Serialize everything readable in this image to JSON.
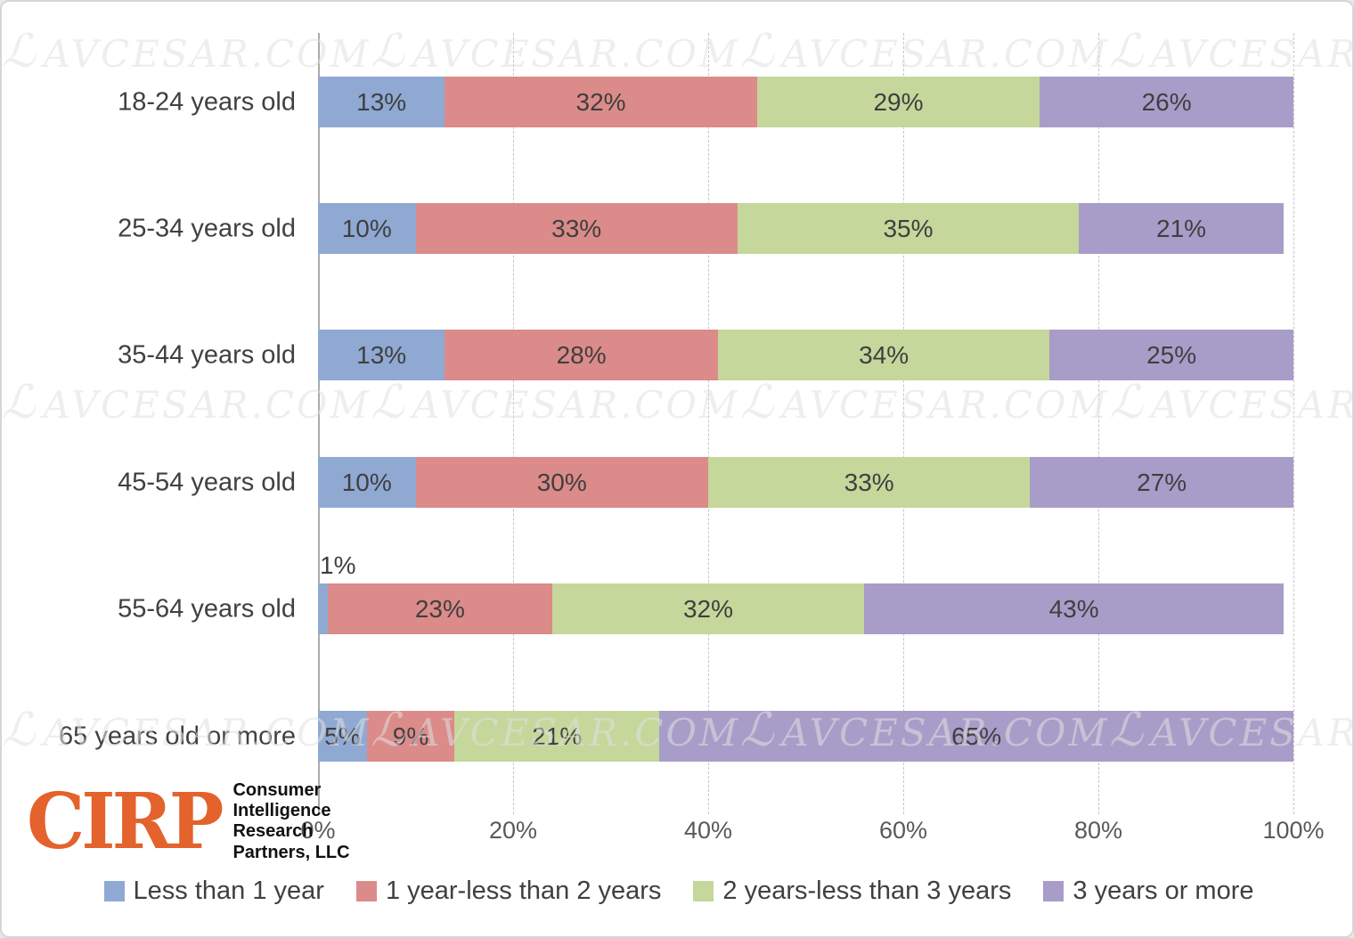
{
  "watermark": {
    "text": "AVCESAR.COM",
    "prefix": "ℒ"
  },
  "logo": {
    "acronym": "CIRP",
    "acronym_color": "#E4622B",
    "lines": [
      "Consumer",
      "Intelligence",
      "Research",
      "Partners, LLC"
    ]
  },
  "chart_data": {
    "type": "bar",
    "subtype": "horizontal-stacked",
    "title": "",
    "categories": [
      "18-24 years old",
      "25-34 years old",
      "35-44 years old",
      "45-54 years old",
      "55-64 years old",
      "65 years old or more"
    ],
    "series": [
      {
        "name": "Less than 1 year",
        "color": "#8FA9D3",
        "values": [
          13,
          10,
          13,
          10,
          1,
          5
        ]
      },
      {
        "name": "1 year-less than 2 years",
        "color": "#DB8B89",
        "values": [
          32,
          33,
          28,
          30,
          23,
          9
        ]
      },
      {
        "name": "2 years-less than 3 years",
        "color": "#C5D79B",
        "values": [
          29,
          35,
          34,
          33,
          32,
          21
        ]
      },
      {
        "name": "3 years or more",
        "color": "#A89DC8",
        "values": [
          26,
          21,
          25,
          27,
          43,
          65
        ]
      }
    ],
    "data_labels": [
      [
        "13%",
        "32%",
        "29%",
        "26%"
      ],
      [
        "10%",
        "33%",
        "35%",
        "21%"
      ],
      [
        "13%",
        "28%",
        "34%",
        "25%"
      ],
      [
        "10%",
        "30%",
        "33%",
        "27%"
      ],
      [
        "1%",
        "23%",
        "32%",
        "43%"
      ],
      [
        "5%",
        "9%",
        "21%",
        "65%"
      ]
    ],
    "x_ticks": [
      "0%",
      "20%",
      "40%",
      "60%",
      "80%",
      "100%"
    ],
    "xlim": [
      0,
      100
    ],
    "grid": "vertical-dashed",
    "legend_position": "bottom",
    "colors": {
      "data_label": "#3f3f3f",
      "axis_label": "#595959",
      "gridline": "#c6c6c6"
    }
  }
}
